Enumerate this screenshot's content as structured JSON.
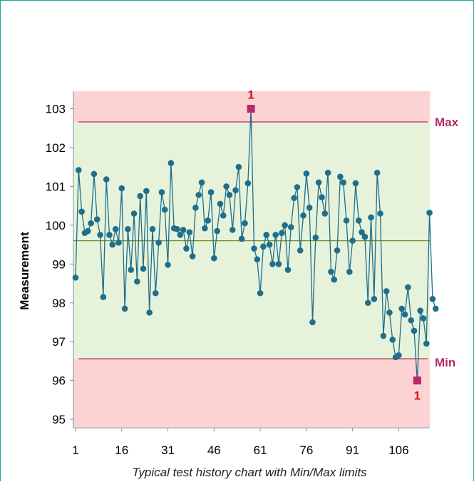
{
  "chart_data": {
    "type": "line",
    "title": "",
    "ylabel": "Measurement",
    "caption": "Typical test history chart with Min/Max limits",
    "ylim": [
      94.8,
      103.45
    ],
    "xlim": [
      1,
      118
    ],
    "yticks": [
      95,
      96,
      97,
      98,
      99,
      100,
      101,
      102,
      103
    ],
    "xticks": [
      1,
      16,
      31,
      46,
      61,
      76,
      91,
      106
    ],
    "limits": {
      "max": 102.66,
      "min": 96.56,
      "mean": 99.6,
      "max_label": "Max",
      "min_label": "Min"
    },
    "violations": [
      {
        "x": 58,
        "y": 103.0,
        "label": "1",
        "position": "above"
      },
      {
        "x": 112,
        "y": 96.0,
        "label": "1",
        "position": "below"
      }
    ],
    "series": [
      {
        "values": [
          98.65,
          101.42,
          100.35,
          99.8,
          99.85,
          100.05,
          101.32,
          100.15,
          99.75,
          98.15,
          101.18,
          99.75,
          99.5,
          99.9,
          99.55,
          100.95,
          97.85,
          99.9,
          98.85,
          100.3,
          98.55,
          100.75,
          98.88,
          100.88,
          97.75,
          99.9,
          98.25,
          99.55,
          100.85,
          100.4,
          98.98,
          101.6,
          99.92,
          99.9,
          99.75,
          99.88,
          99.4,
          99.82,
          99.2,
          100.45,
          100.78,
          101.1,
          99.92,
          100.12,
          100.85,
          99.15,
          99.85,
          100.55,
          100.25,
          101.0,
          100.78,
          99.88,
          100.9,
          101.5,
          99.65,
          100.05,
          101.08,
          103.0,
          99.4,
          99.12,
          98.25,
          99.45,
          99.75,
          99.5,
          99.0,
          99.75,
          99.0,
          99.8,
          100.0,
          98.85,
          99.95,
          100.7,
          100.98,
          99.35,
          100.25,
          101.33,
          100.45,
          97.5,
          99.68,
          101.1,
          100.72,
          100.3,
          101.35,
          98.8,
          98.6,
          99.35,
          101.25,
          101.1,
          100.12,
          98.8,
          99.6,
          101.08,
          100.12,
          99.82,
          99.7,
          98.0,
          100.2,
          98.1,
          101.35,
          100.3,
          97.15,
          98.3,
          97.75,
          97.05,
          96.6,
          96.65,
          97.85,
          97.7,
          98.4,
          97.55,
          97.28,
          96.0,
          97.8,
          97.6,
          96.95,
          100.32,
          98.1,
          97.85
        ],
        "color": "#1f6e8c"
      }
    ],
    "colors": {
      "zone_out": "#fdd2d3",
      "zone_in": "#e6f3da",
      "limit_line": "#b8285a",
      "mean_line": "#6e8b2a",
      "series": "#1f6e8c",
      "violation": "#b8286a",
      "violation_label": "#cc1111",
      "limit_label": "#b8286a"
    },
    "grid": false
  }
}
